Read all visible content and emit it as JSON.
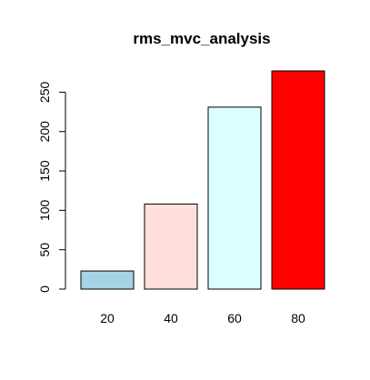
{
  "chart_data": {
    "type": "bar",
    "title": "rms_mvc_analysis",
    "xlabel": "",
    "ylabel": "",
    "categories": [
      "20",
      "40",
      "60",
      "80"
    ],
    "values": [
      23,
      108,
      231,
      277
    ],
    "colors": [
      "#a6d3e3",
      "#ffdedb",
      "#dbffff",
      "#ff0000"
    ],
    "ylim": [
      0,
      285
    ],
    "yticks": [
      0,
      50,
      100,
      150,
      200,
      250
    ],
    "grid": false,
    "legend": "none"
  }
}
